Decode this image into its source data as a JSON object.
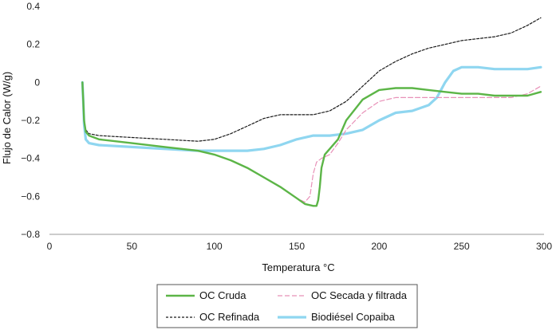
{
  "chart_data": {
    "type": "line",
    "title": "",
    "xlabel": "Temperatura °C",
    "ylabel": "Flujo de Calor (W/g)",
    "xlim": [
      0,
      300
    ],
    "ylim": [
      -0.8,
      0.4
    ],
    "xticks": [
      0,
      50,
      100,
      150,
      200,
      250,
      300
    ],
    "xtick_labels": [
      "0",
      "50",
      "100",
      "150",
      "200",
      "250",
      "300"
    ],
    "yticks": [
      0.4,
      0.2,
      0,
      -0.2,
      -0.4,
      -0.6,
      -0.8
    ],
    "ytick_labels": [
      "0.4",
      "0.2",
      "0",
      "−0.2",
      "−0.4",
      "−0.6",
      "−0.8"
    ],
    "grid": false,
    "legend_position": "bottom",
    "series": [
      {
        "name": "OC  Cruda",
        "color": "#5cb547",
        "dash": "solid",
        "x": [
          20,
          20.5,
          21,
          22,
          24,
          30,
          50,
          70,
          90,
          100,
          110,
          120,
          130,
          140,
          150,
          155,
          160,
          162,
          163,
          164,
          165,
          167,
          170,
          175,
          180,
          190,
          200,
          210,
          220,
          230,
          240,
          250,
          260,
          270,
          280,
          290,
          298
        ],
        "values": [
          0.0,
          -0.1,
          -0.2,
          -0.26,
          -0.28,
          -0.3,
          -0.32,
          -0.34,
          -0.36,
          -0.38,
          -0.41,
          -0.45,
          -0.5,
          -0.55,
          -0.61,
          -0.64,
          -0.65,
          -0.65,
          -0.62,
          -0.55,
          -0.45,
          -0.38,
          -0.35,
          -0.3,
          -0.2,
          -0.09,
          -0.04,
          -0.03,
          -0.03,
          -0.04,
          -0.05,
          -0.06,
          -0.06,
          -0.07,
          -0.07,
          -0.07,
          -0.05
        ]
      },
      {
        "name": "OC Secada y filtrada",
        "color": "#e891b8",
        "dash": "dashed",
        "x": [
          20,
          20.5,
          21,
          22,
          24,
          30,
          50,
          70,
          90,
          100,
          110,
          120,
          130,
          140,
          150,
          155,
          158,
          160,
          162,
          165,
          170,
          175,
          180,
          190,
          200,
          210,
          220,
          230,
          240,
          250,
          260,
          270,
          280,
          290,
          298
        ],
        "values": [
          0.0,
          -0.1,
          -0.2,
          -0.26,
          -0.28,
          -0.3,
          -0.32,
          -0.34,
          -0.36,
          -0.38,
          -0.41,
          -0.45,
          -0.5,
          -0.55,
          -0.61,
          -0.63,
          -0.6,
          -0.48,
          -0.42,
          -0.4,
          -0.38,
          -0.32,
          -0.25,
          -0.16,
          -0.1,
          -0.08,
          -0.08,
          -0.08,
          -0.08,
          -0.08,
          -0.08,
          -0.08,
          -0.08,
          -0.06,
          -0.02
        ]
      },
      {
        "name": "OC Refinada",
        "color": "#1a1a1a",
        "dash": "dotted",
        "x": [
          20,
          20.5,
          21,
          22,
          24,
          30,
          50,
          70,
          90,
          100,
          110,
          120,
          130,
          140,
          150,
          160,
          170,
          180,
          190,
          200,
          210,
          220,
          230,
          240,
          250,
          260,
          270,
          280,
          290,
          298
        ],
        "values": [
          0.0,
          -0.1,
          -0.2,
          -0.25,
          -0.27,
          -0.28,
          -0.29,
          -0.3,
          -0.31,
          -0.3,
          -0.27,
          -0.23,
          -0.19,
          -0.17,
          -0.17,
          -0.17,
          -0.15,
          -0.1,
          -0.02,
          0.06,
          0.11,
          0.15,
          0.18,
          0.2,
          0.22,
          0.23,
          0.24,
          0.26,
          0.3,
          0.34
        ]
      },
      {
        "name": "Biodiésel Copaiba",
        "color": "#8fd6f0",
        "dash": "solid",
        "x": [
          20,
          20.5,
          21,
          22,
          24,
          30,
          50,
          70,
          90,
          100,
          110,
          120,
          130,
          140,
          150,
          160,
          170,
          180,
          190,
          200,
          210,
          220,
          230,
          235,
          240,
          245,
          250,
          260,
          270,
          280,
          290,
          298
        ],
        "values": [
          0.0,
          -0.1,
          -0.22,
          -0.3,
          -0.32,
          -0.33,
          -0.34,
          -0.35,
          -0.36,
          -0.36,
          -0.36,
          -0.36,
          -0.35,
          -0.33,
          -0.3,
          -0.28,
          -0.28,
          -0.27,
          -0.25,
          -0.2,
          -0.16,
          -0.15,
          -0.12,
          -0.08,
          0.0,
          0.06,
          0.08,
          0.08,
          0.07,
          0.07,
          0.07,
          0.08
        ]
      }
    ]
  }
}
